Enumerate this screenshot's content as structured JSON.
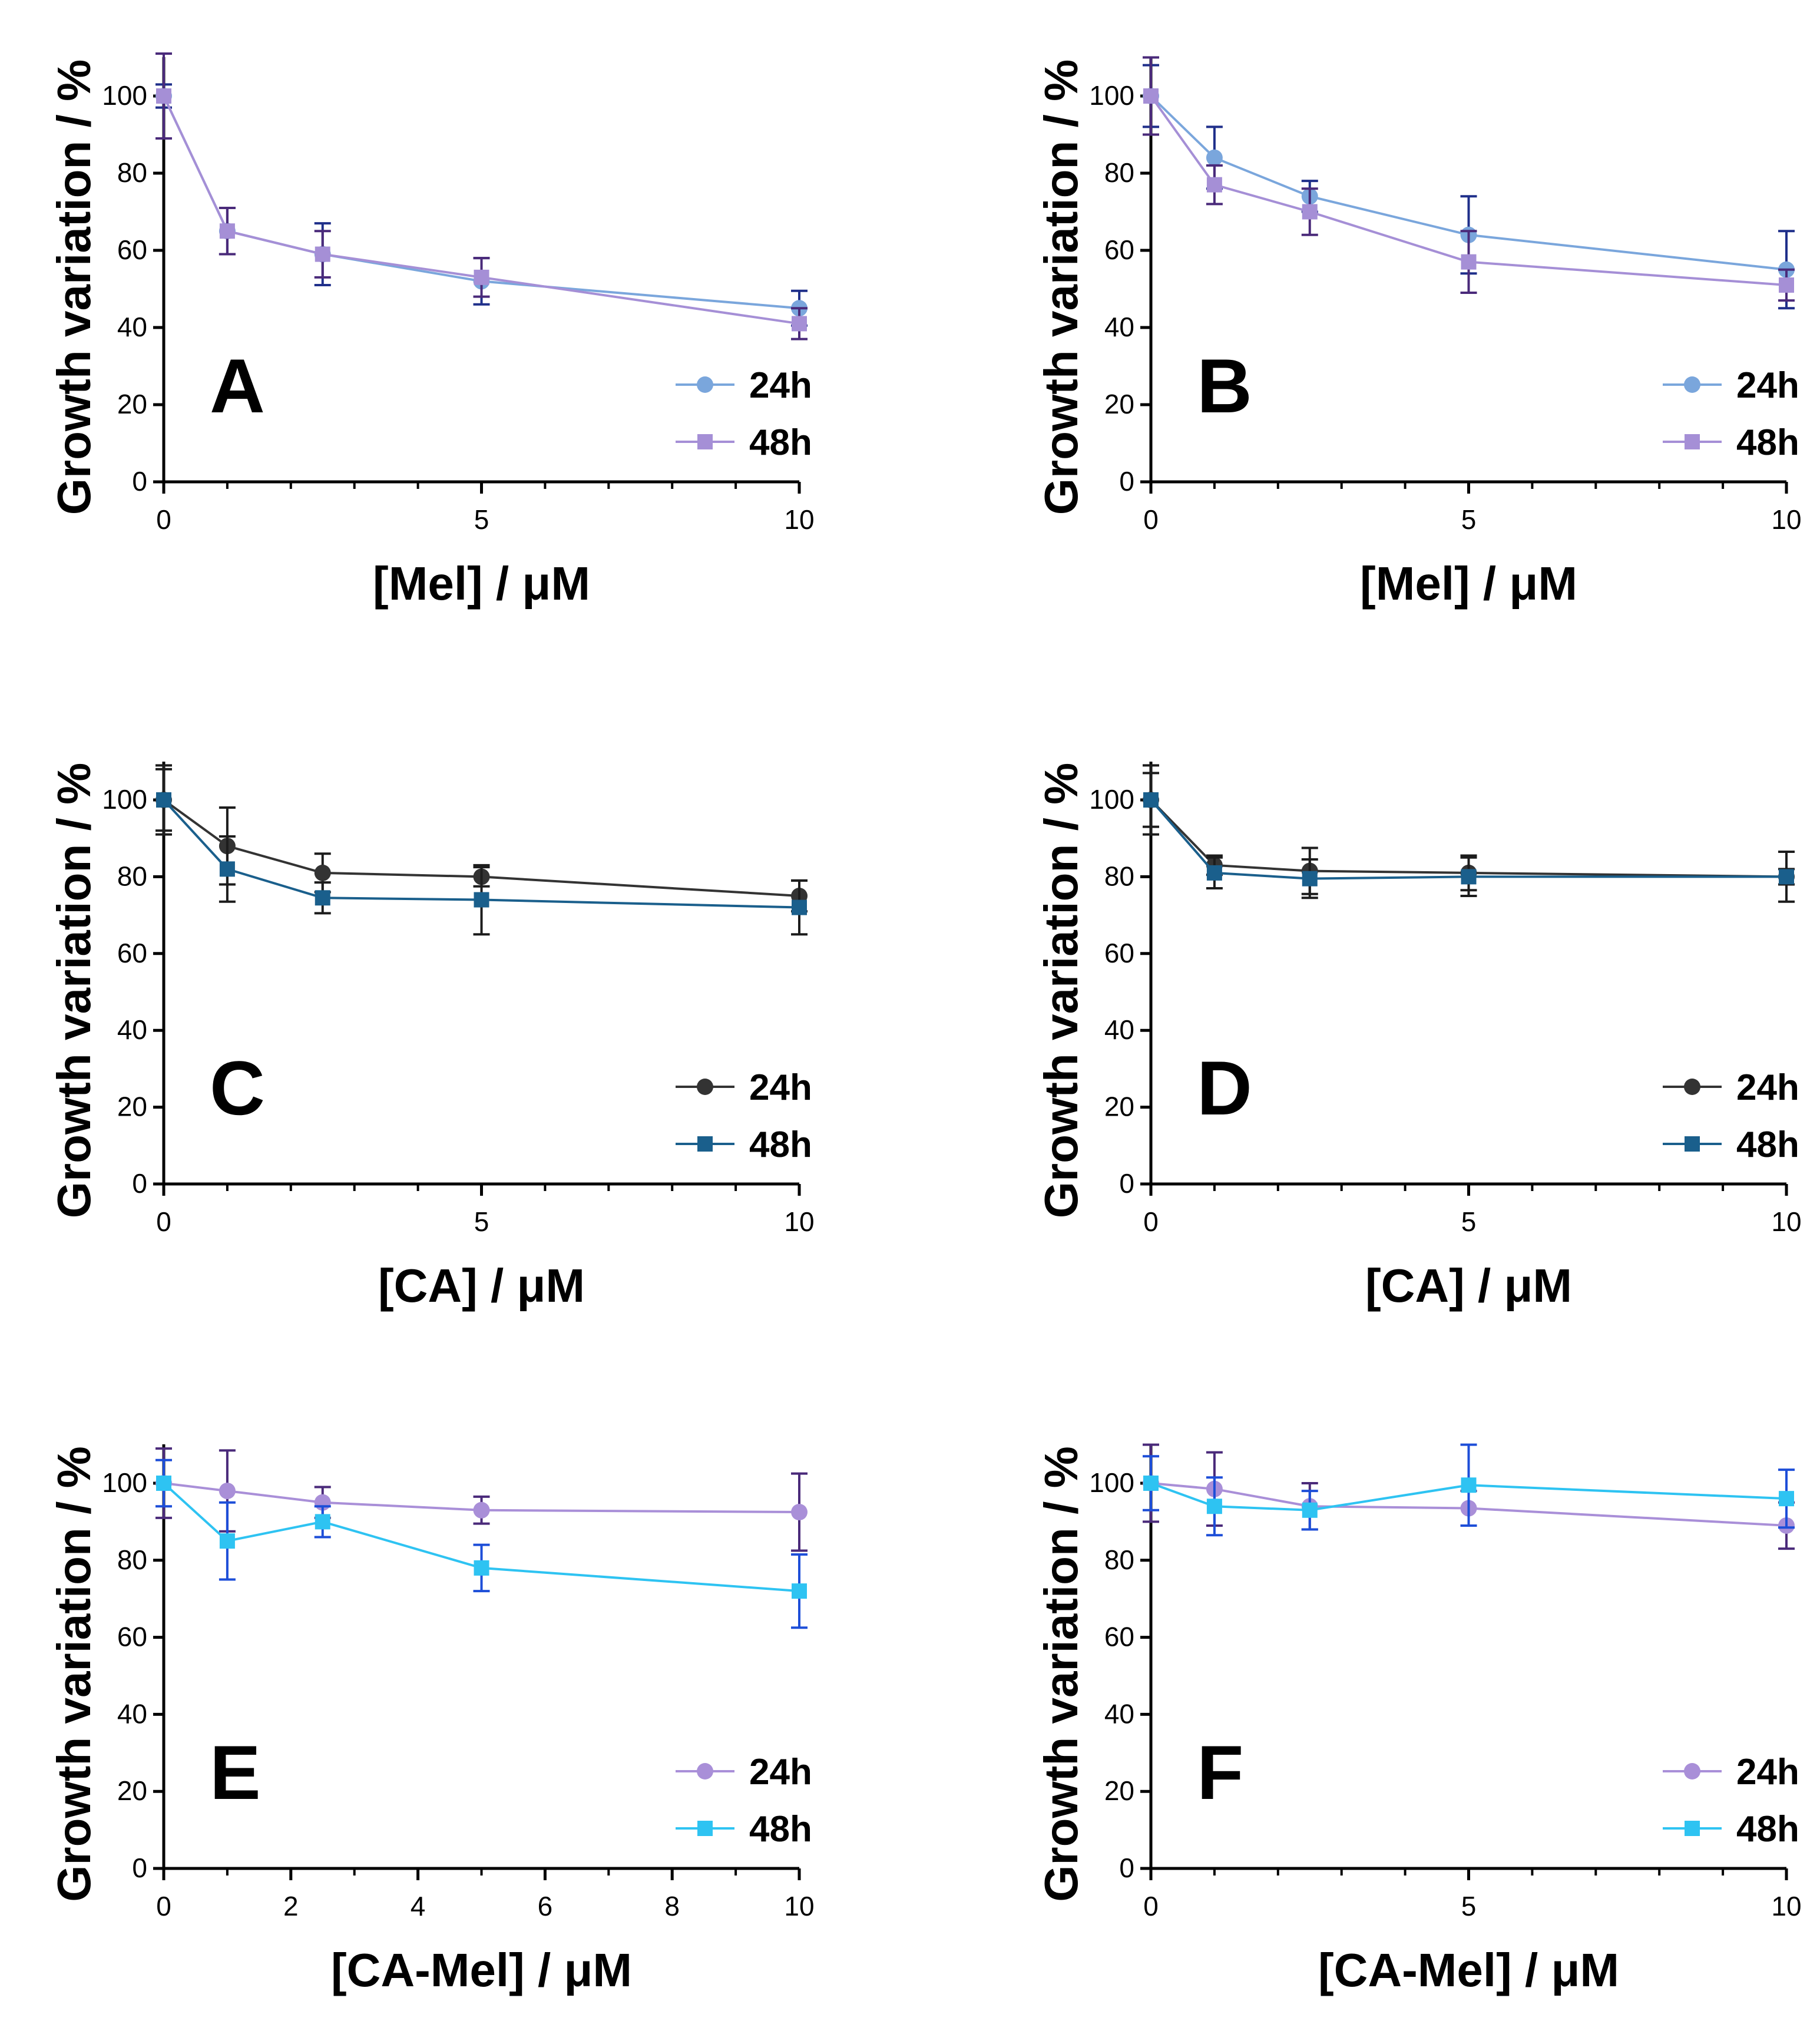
{
  "figure": {
    "ylabel": "Growth variation / %",
    "panels": [
      "A",
      "B",
      "C",
      "D",
      "E",
      "F"
    ]
  },
  "colors": {
    "axis": "#000000",
    "blue_24h": "#7aa6dc",
    "purple_48h": "#a58fd6",
    "dark_24h": "#333333",
    "teal_48h": "#1a5f8c",
    "purple_24h": "#a98fd8",
    "cyan_48h": "#2ec3f2",
    "err_navy": "#1f2f8a",
    "err_purple": "#4a2a7a",
    "err_dark": "#1c1c1c",
    "err_blue": "#1d4ed8"
  },
  "chart_data": [
    {
      "type": "line",
      "panel": "A",
      "xlabel": "[Mel] / μM",
      "ylabel": "Growth variation / %",
      "xlim": [
        0,
        10
      ],
      "ylim": [
        0,
        110
      ],
      "x_ticks": [
        0,
        5,
        10
      ],
      "x_minor_ticks": [
        1,
        2,
        3,
        4,
        6,
        7,
        8,
        9
      ],
      "y_ticks": [
        0,
        20,
        40,
        60,
        80,
        100
      ],
      "legend_position": "bottom-right",
      "series": [
        {
          "name": "24h",
          "marker": "circle",
          "color": "#7aa6dc",
          "err_color": "#1f2f8a",
          "x": [
            0,
            1,
            2.5,
            5,
            10
          ],
          "y": [
            100,
            65,
            59,
            52,
            45
          ],
          "err": [
            3,
            6,
            8,
            6,
            4.5
          ]
        },
        {
          "name": "48h",
          "marker": "square",
          "color": "#a58fd6",
          "err_color": "#4a2a7a",
          "x": [
            0,
            1,
            2.5,
            5,
            10
          ],
          "y": [
            100,
            65,
            59,
            53,
            41
          ],
          "err": [
            11,
            6,
            6,
            5,
            4
          ]
        }
      ]
    },
    {
      "type": "line",
      "panel": "B",
      "xlabel": "[Mel] / μM",
      "ylabel": "Growth variation / %",
      "xlim": [
        0,
        10
      ],
      "ylim": [
        0,
        110
      ],
      "x_ticks": [
        0,
        5,
        10
      ],
      "x_minor_ticks": [
        1,
        2,
        3,
        4,
        6,
        7,
        8,
        9
      ],
      "y_ticks": [
        0,
        20,
        40,
        60,
        80,
        100
      ],
      "legend_position": "bottom-right",
      "series": [
        {
          "name": "24h",
          "marker": "circle",
          "color": "#7aa6dc",
          "err_color": "#1f2f8a",
          "x": [
            0,
            1,
            2.5,
            5,
            10
          ],
          "y": [
            100,
            84,
            74,
            64,
            55
          ],
          "err": [
            8,
            8,
            4,
            10,
            10
          ]
        },
        {
          "name": "48h",
          "marker": "square",
          "color": "#a58fd6",
          "err_color": "#4a2a7a",
          "x": [
            0,
            1,
            2.5,
            5,
            10
          ],
          "y": [
            100,
            77,
            70,
            57,
            51
          ],
          "err": [
            10,
            5,
            6,
            8,
            4
          ]
        }
      ]
    },
    {
      "type": "line",
      "panel": "C",
      "xlabel": "[CA] / μM",
      "ylabel": "Growth variation / %",
      "xlim": [
        0,
        10
      ],
      "ylim": [
        0,
        110
      ],
      "x_ticks": [
        0,
        5,
        10
      ],
      "x_minor_ticks": [
        1,
        2,
        3,
        4,
        6,
        7,
        8,
        9
      ],
      "y_ticks": [
        0,
        20,
        40,
        60,
        80,
        100
      ],
      "legend_position": "bottom-right",
      "series": [
        {
          "name": "24h",
          "marker": "circle",
          "color": "#333333",
          "err_color": "#1c1c1c",
          "x": [
            0,
            1,
            2.5,
            5,
            10
          ],
          "y": [
            100,
            88,
            81,
            80,
            75
          ],
          "err": [
            9,
            10,
            5,
            2.5,
            4
          ]
        },
        {
          "name": "48h",
          "marker": "square",
          "color": "#1a5f8c",
          "err_color": "#1c1c1c",
          "x": [
            0,
            1,
            2.5,
            5,
            10
          ],
          "y": [
            100,
            82,
            74.5,
            74,
            72
          ],
          "err": [
            8,
            8.5,
            4,
            9,
            7
          ]
        }
      ]
    },
    {
      "type": "line",
      "panel": "D",
      "xlabel": "[CA] / μM",
      "ylabel": "Growth variation / %",
      "xlim": [
        0,
        10
      ],
      "ylim": [
        0,
        110
      ],
      "x_ticks": [
        0,
        5,
        10
      ],
      "x_minor_ticks": [
        1,
        2,
        3,
        4,
        6,
        7,
        8,
        9
      ],
      "y_ticks": [
        0,
        20,
        40,
        60,
        80,
        100
      ],
      "legend_position": "bottom-right",
      "series": [
        {
          "name": "24h",
          "marker": "circle",
          "color": "#333333",
          "err_color": "#1c1c1c",
          "x": [
            0,
            1,
            2.5,
            5,
            10
          ],
          "y": [
            100,
            83,
            81.5,
            81,
            80
          ],
          "err": [
            9,
            2.5,
            6,
            4.5,
            6.5
          ]
        },
        {
          "name": "48h",
          "marker": "square",
          "color": "#1a5f8c",
          "err_color": "#1c1c1c",
          "x": [
            0,
            1,
            2.5,
            5,
            10
          ],
          "y": [
            100,
            81,
            79.5,
            80,
            80
          ],
          "err": [
            7,
            4,
            5,
            5,
            2
          ]
        }
      ]
    },
    {
      "type": "line",
      "panel": "E",
      "xlabel": "[CA-Mel] / μM",
      "ylabel": "Growth variation / %",
      "xlim": [
        0,
        10
      ],
      "ylim": [
        0,
        110
      ],
      "x_ticks": [
        0,
        2,
        4,
        6,
        8,
        10
      ],
      "x_minor_ticks": [
        1,
        3,
        5,
        7,
        9
      ],
      "y_ticks": [
        0,
        20,
        40,
        60,
        80,
        100
      ],
      "legend_position": "bottom-right",
      "series": [
        {
          "name": "24h",
          "marker": "circle",
          "color": "#a98fd8",
          "err_color": "#4a2a7a",
          "x": [
            0,
            1,
            2.5,
            5,
            10
          ],
          "y": [
            100,
            98,
            95,
            93,
            92.5
          ],
          "err": [
            9,
            10.5,
            4,
            3.5,
            10
          ]
        },
        {
          "name": "48h",
          "marker": "square",
          "color": "#2ec3f2",
          "err_color": "#1d4ed8",
          "x": [
            0,
            1,
            2.5,
            5,
            10
          ],
          "y": [
            100,
            85,
            90,
            78,
            72
          ],
          "err": [
            6,
            10,
            4,
            6,
            9.5
          ]
        }
      ]
    },
    {
      "type": "line",
      "panel": "F",
      "xlabel": "[CA-Mel] / μM",
      "ylabel": "Growth variation / %",
      "xlim": [
        0,
        10
      ],
      "ylim": [
        0,
        110
      ],
      "x_ticks": [
        0,
        5,
        10
      ],
      "x_minor_ticks": [
        1,
        2,
        3,
        4,
        6,
        7,
        8,
        9
      ],
      "y_ticks": [
        0,
        20,
        40,
        60,
        80,
        100
      ],
      "legend_position": "bottom-right",
      "series": [
        {
          "name": "24h",
          "marker": "circle",
          "color": "#a98fd8",
          "err_color": "#4a2a7a",
          "x": [
            0,
            1,
            2.5,
            5,
            10
          ],
          "y": [
            100,
            98.5,
            94,
            93.5,
            89
          ],
          "err": [
            10,
            9.5,
            6,
            4.5,
            6
          ]
        },
        {
          "name": "48h",
          "marker": "square",
          "color": "#2ec3f2",
          "err_color": "#1d4ed8",
          "x": [
            0,
            1,
            2.5,
            5,
            10
          ],
          "y": [
            100,
            94,
            93,
            99.5,
            96
          ],
          "err": [
            7,
            7.5,
            5,
            10.5,
            7.5
          ]
        }
      ]
    }
  ]
}
